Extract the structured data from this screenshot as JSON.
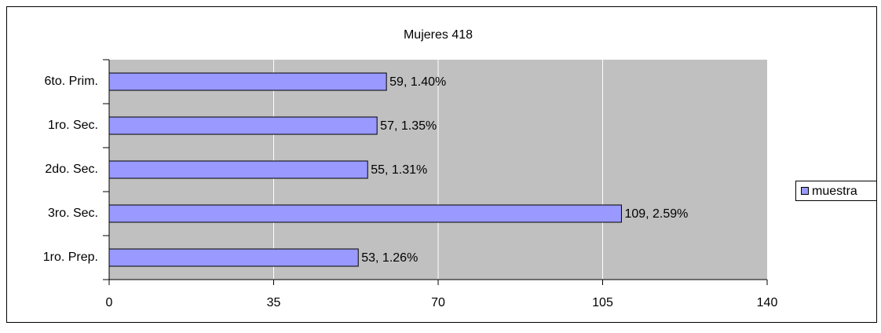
{
  "chart_data": {
    "type": "bar",
    "orientation": "horizontal",
    "title": "Mujeres 418",
    "categories": [
      "6to. Prim.",
      "1ro. Sec.",
      "2do. Sec.",
      "3ro. Sec.",
      "1ro. Prep."
    ],
    "series": [
      {
        "name": "muestra",
        "color": "#9999ff",
        "values": [
          59,
          57,
          55,
          109,
          53
        ],
        "value_labels": [
          "59, 1.40%",
          "57, 1.35%",
          "55, 1.31%",
          "109, 2.59%",
          "53, 1.26%"
        ]
      }
    ],
    "xlim": [
      0,
      140
    ],
    "xticks": [
      0,
      35,
      70,
      105,
      140
    ],
    "grid": true,
    "legend": "right"
  }
}
